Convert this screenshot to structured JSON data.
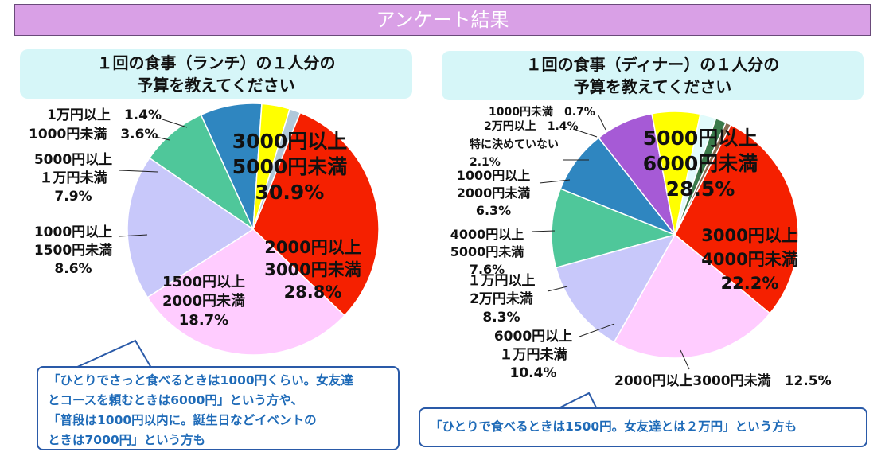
{
  "banner": {
    "title": "アンケート結果"
  },
  "chart_data": [
    {
      "type": "pie",
      "title": [
        "１回の食事（ランチ）の１人分の",
        "予算を教えてください"
      ],
      "slices": [
        {
          "lines": [
            "3000円以上",
            "5000円未満",
            "30.9%"
          ],
          "value": 30.9,
          "color": "#f52000"
        },
        {
          "lines": [
            "2000円以上",
            "3000円未満",
            "28.8%"
          ],
          "value": 28.8,
          "color": "#ffccff"
        },
        {
          "lines": [
            "1500円以上",
            "2000円未満",
            "18.7%"
          ],
          "value": 18.7,
          "color": "#c8c8fa"
        },
        {
          "lines": [
            "1000円以上",
            "1500円未満",
            "8.6%"
          ],
          "value": 8.6,
          "color": "#4fc79a"
        },
        {
          "lines": [
            "5000円以上",
            "１万円未満",
            "7.9%"
          ],
          "value": 7.9,
          "color": "#2f86c0"
        },
        {
          "lines": [
            "1000円未満　3.6%"
          ],
          "value": 3.6,
          "color": "#ffff00"
        },
        {
          "lines": [
            "1万円以上　1.4%"
          ],
          "value": 1.4,
          "color": "#b0c8da"
        }
      ],
      "comment": [
        "「ひとりでさっと食べるときは1000円くらい。女友達",
        "とコースを頼むときは6000円」という方や、",
        "「普段は1000円以内に。誕生日などイベントの",
        "ときは7000円」という方も"
      ]
    },
    {
      "type": "pie",
      "title": [
        "１回の食事（ディナー）の１人分の",
        "予算を教えてください"
      ],
      "slices": [
        {
          "lines": [
            "5000円以上",
            "6000円未満",
            "28.5%"
          ],
          "value": 28.5,
          "color": "#f52000"
        },
        {
          "lines": [
            "3000円以上",
            "4000円未満",
            "22.2%"
          ],
          "value": 22.2,
          "color": "#ffccff"
        },
        {
          "lines": [
            "2000円以上3000円未満　12.5%"
          ],
          "value": 12.5,
          "color": "#c8c8fa"
        },
        {
          "lines": [
            "6000円以上",
            "１万円未満",
            "10.4%"
          ],
          "value": 10.4,
          "color": "#4fc79a"
        },
        {
          "lines": [
            "１万円以上",
            "2万円未満",
            "8.3%"
          ],
          "value": 8.3,
          "color": "#2f86c0"
        },
        {
          "lines": [
            "4000円以上",
            "5000円未満",
            "7.6%"
          ],
          "value": 7.6,
          "color": "#a65ad6"
        },
        {
          "lines": [
            "1000円以上",
            "2000円未満",
            "6.3%"
          ],
          "value": 6.3,
          "color": "#ffff00"
        },
        {
          "lines": [
            "特に決めていない",
            "2.1%"
          ],
          "value": 2.1,
          "color": "#e2fbfb"
        },
        {
          "lines": [
            "2万円以上　1.4%"
          ],
          "value": 1.4,
          "color": "#3a7a4a"
        },
        {
          "lines": [
            "1000円未満　0.7%"
          ],
          "value": 0.7,
          "color": "#8a6a50"
        }
      ],
      "comment": [
        "「ひとりで食べるときは1500円。女友達とは２万円」という方も"
      ]
    }
  ]
}
